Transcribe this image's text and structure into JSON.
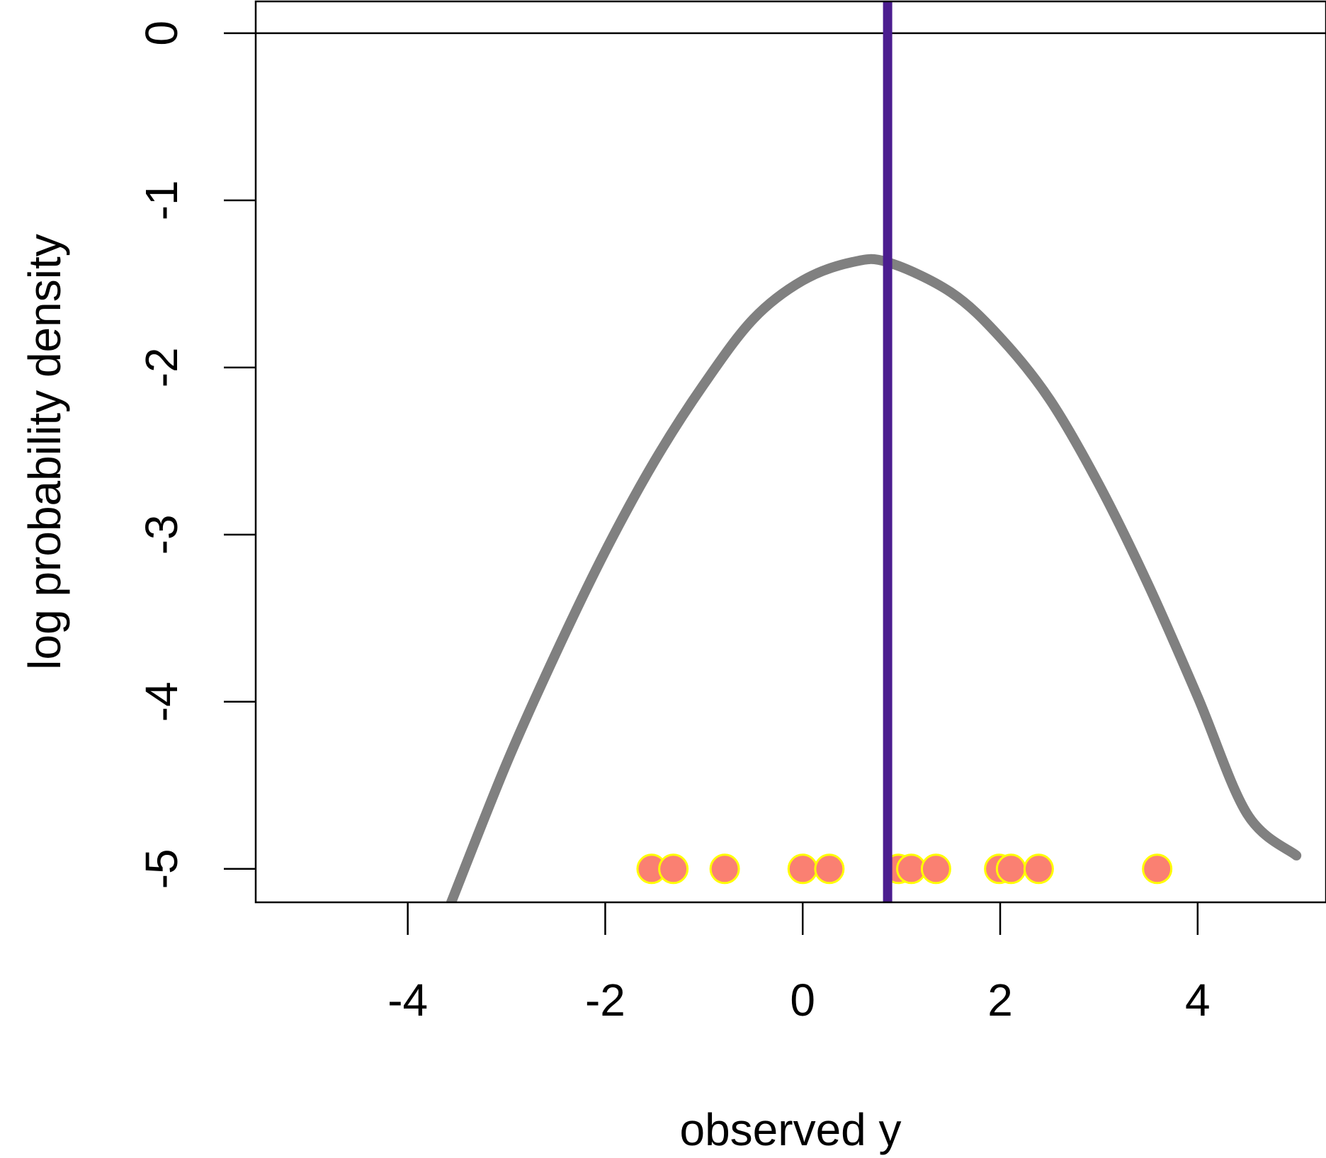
{
  "chart_data": {
    "type": "line",
    "title": "",
    "xlabel": "observed y",
    "ylabel": "log probability density",
    "xlim": [
      -5.54,
      5.3
    ],
    "ylim": [
      -5.2,
      0.19
    ],
    "x_ticks": [
      {
        "value": -4,
        "label": "-4"
      },
      {
        "value": -2,
        "label": "-2"
      },
      {
        "value": 0,
        "label": "0"
      },
      {
        "value": 2,
        "label": "2"
      },
      {
        "value": 4,
        "label": "4"
      }
    ],
    "y_ticks": [
      {
        "value": 0,
        "label": "0"
      },
      {
        "value": -1,
        "label": "-1"
      },
      {
        "value": -2,
        "label": "-2"
      },
      {
        "value": -3,
        "label": "-3"
      },
      {
        "value": -4,
        "label": "-4"
      },
      {
        "value": -5,
        "label": "-5"
      }
    ],
    "grid": false,
    "series": [
      {
        "kind": "curve",
        "color": "#808080",
        "x": [
          -3.56,
          -3.0,
          -2.5,
          -2.0,
          -1.5,
          -1.0,
          -0.5,
          0.0,
          0.5,
          0.86,
          1.5,
          2.0,
          2.5,
          3.0,
          3.5,
          4.0,
          4.5,
          5.0
        ],
        "y": [
          -5.2,
          -4.37,
          -3.71,
          -3.1,
          -2.56,
          -2.1,
          -1.71,
          -1.48,
          -1.37,
          -1.37,
          -1.55,
          -1.82,
          -2.19,
          -2.7,
          -3.3,
          -3.97,
          -4.67,
          -4.92
        ]
      },
      {
        "kind": "points",
        "marker": "circle",
        "color": "#FA8072",
        "edge_color": "#FFFF00",
        "x": [
          -1.53,
          -1.31,
          -0.79,
          0.0,
          0.27,
          0.97,
          1.1,
          1.35,
          1.99,
          2.11,
          2.39,
          3.59
        ],
        "y": [
          -5,
          -5,
          -5,
          -5,
          -5,
          -5,
          -5,
          -5,
          -5,
          -5,
          -5,
          -5
        ]
      }
    ],
    "reference_lines": [
      {
        "orientation": "vertical",
        "value": 0.86,
        "color": "#4B1D8F"
      },
      {
        "orientation": "horizontal",
        "value": 0,
        "color": "#000000"
      }
    ]
  }
}
